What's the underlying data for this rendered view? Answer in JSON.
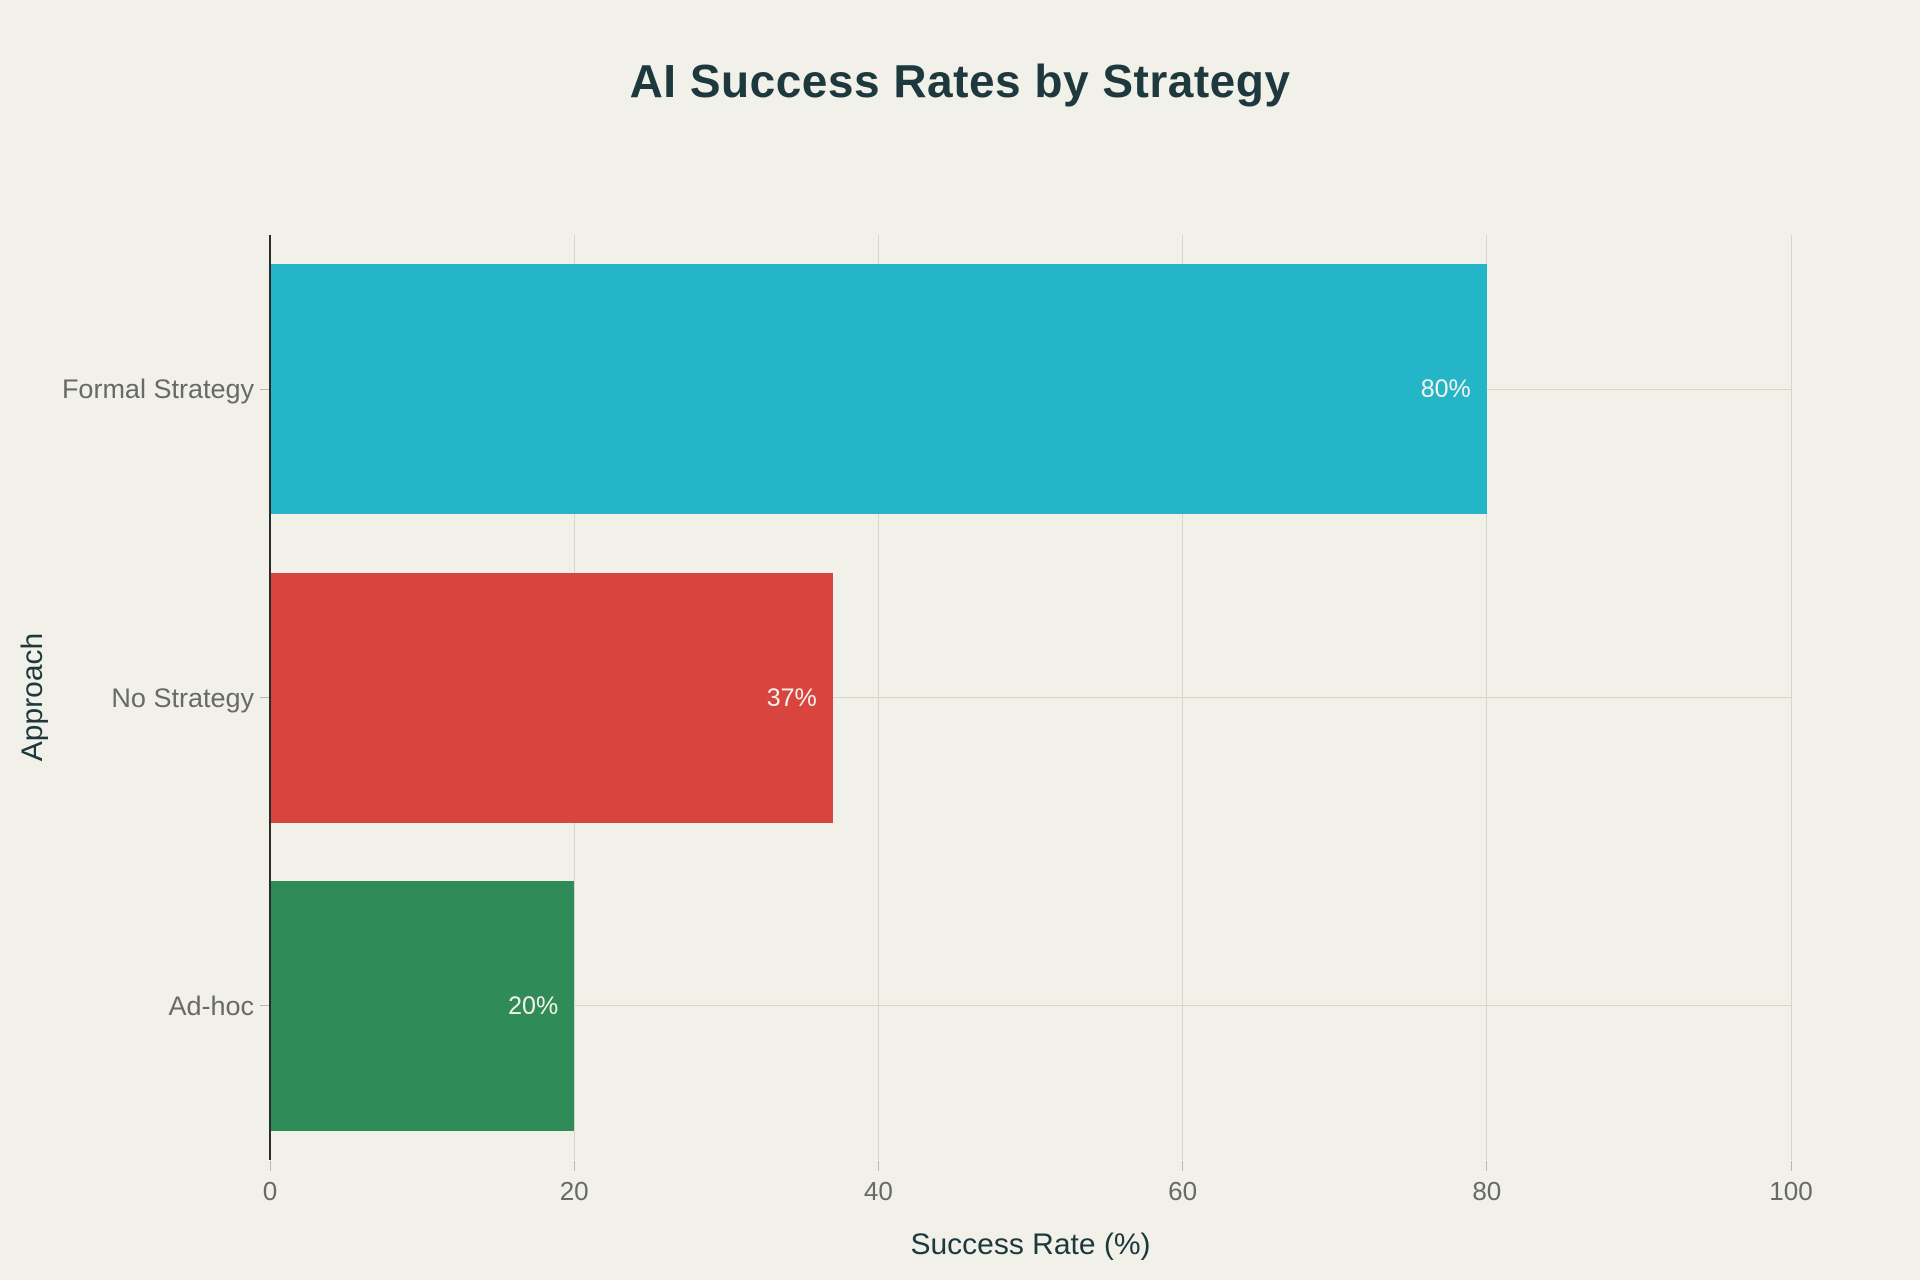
{
  "chart_data": {
    "type": "bar",
    "orientation": "horizontal",
    "title": "AI Success Rates by Strategy",
    "xlabel": "Success Rate (%)",
    "ylabel": "Approach",
    "categories": [
      "Formal Strategy",
      "No Strategy",
      "Ad-hoc"
    ],
    "values": [
      80,
      37,
      20
    ],
    "value_labels": [
      "80%",
      "37%",
      "20%"
    ],
    "bar_colors": [
      "#25b5c8",
      "#d8453f",
      "#2f8b57"
    ],
    "xlim": [
      0,
      100
    ],
    "xticks": [
      0,
      20,
      40,
      60,
      80,
      100
    ],
    "grid": true,
    "legend": false,
    "colors": {
      "background": "#f1f0e9",
      "title": "#1d393d",
      "axis_title": "#1d393d",
      "tick_label": "#696969",
      "category_label": "#696969",
      "grid": "#d7d6cd",
      "axis_line": "#2b2b2b",
      "tick_mark": "#b9b8b0",
      "bar_label": "#f4f2ea"
    }
  }
}
